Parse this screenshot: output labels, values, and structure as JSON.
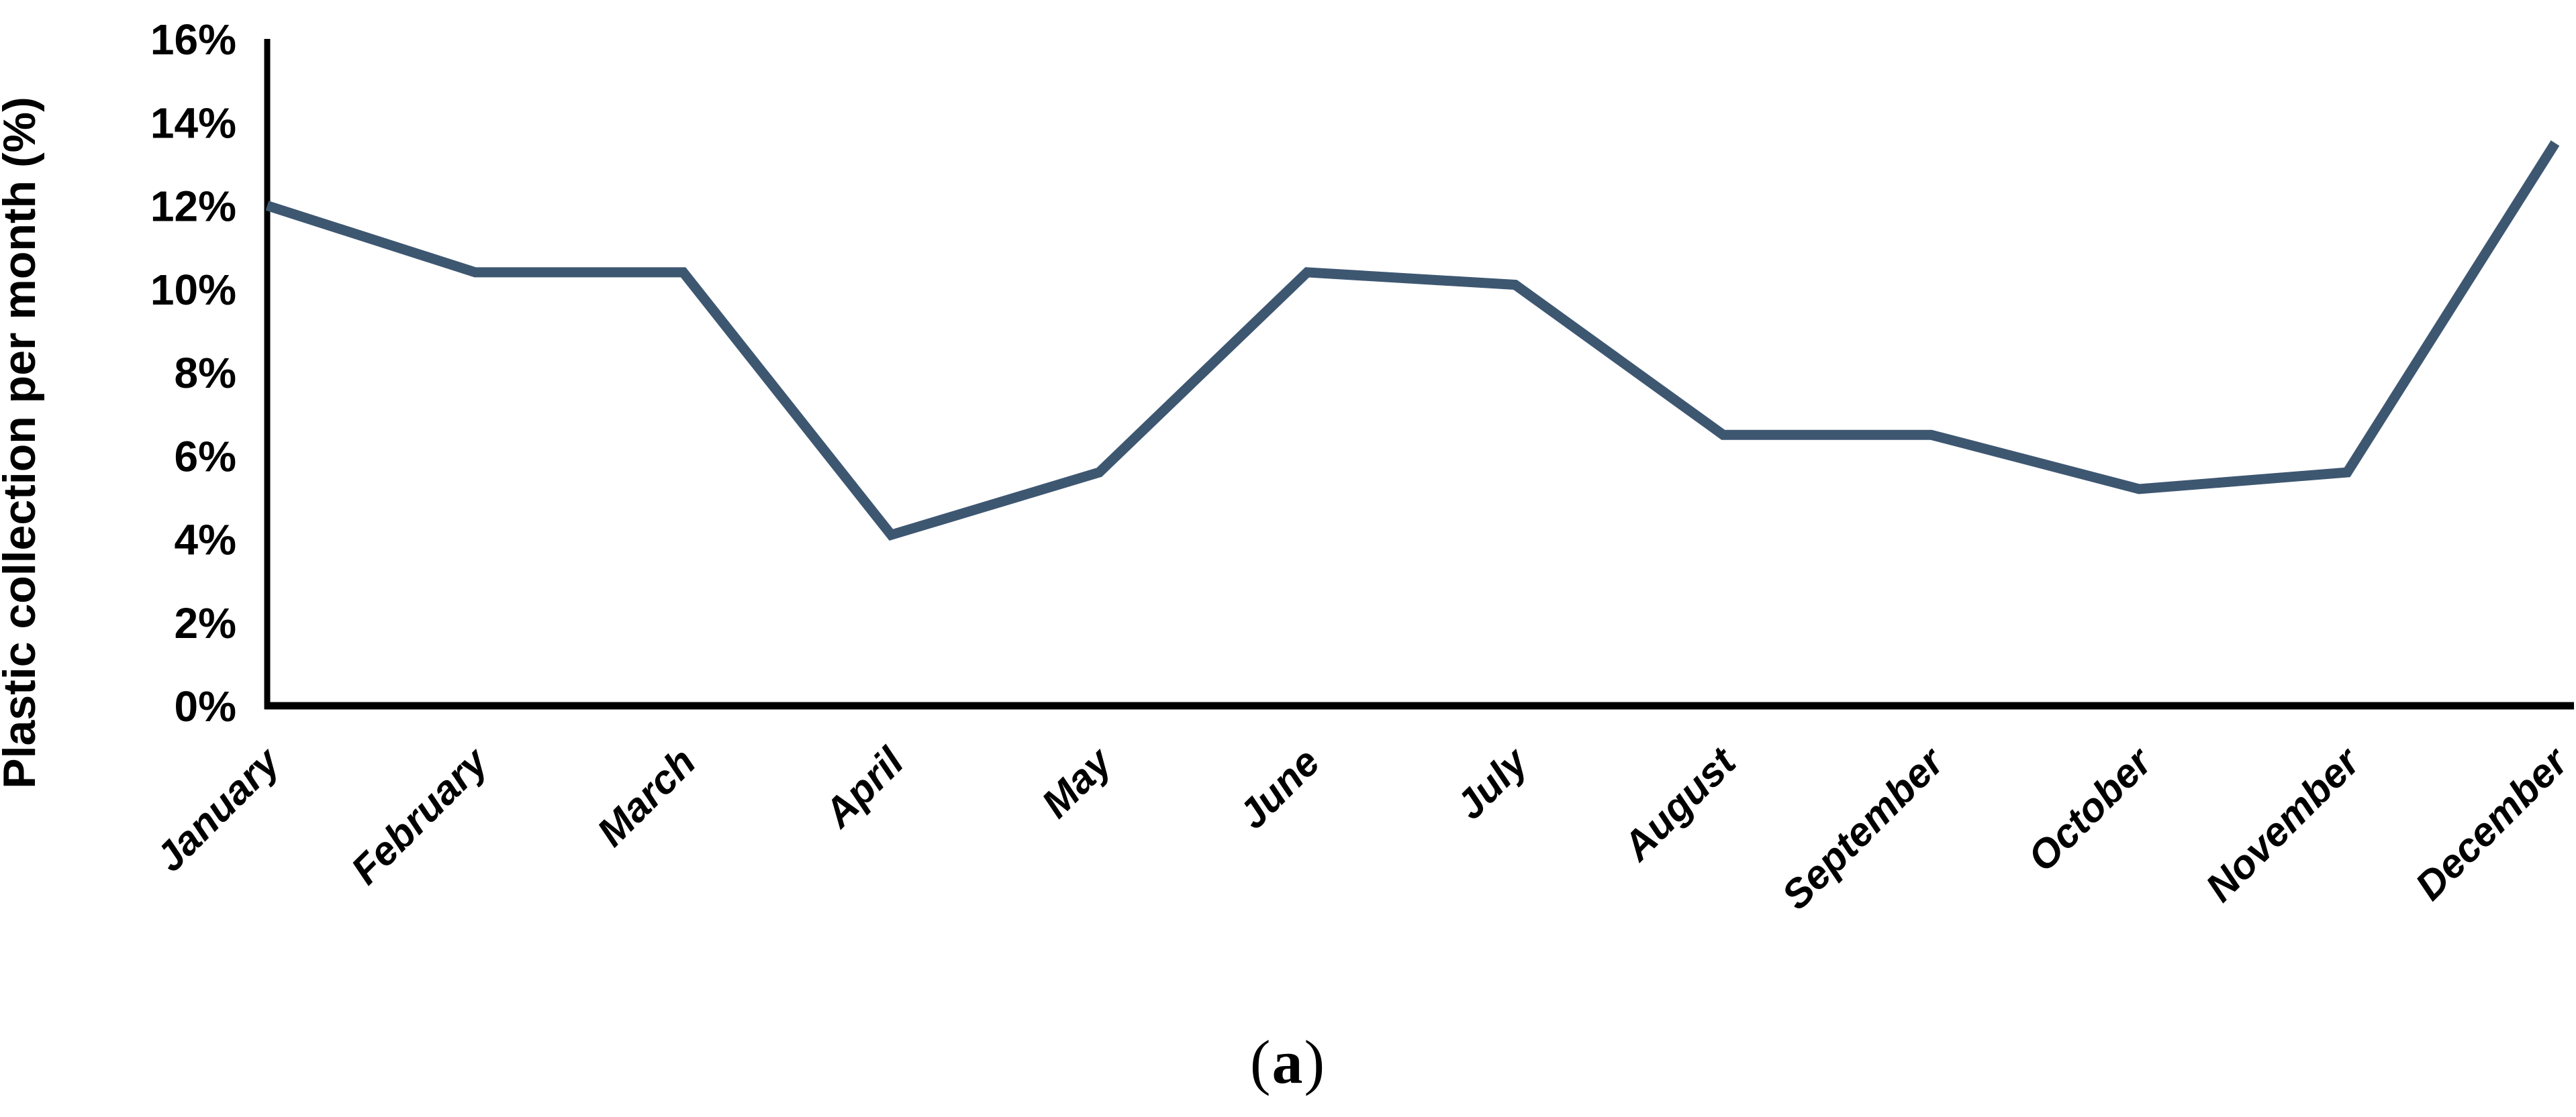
{
  "figure": {
    "caption_open": "(",
    "caption_letter": "a",
    "caption_close": ")"
  },
  "chart_data": {
    "type": "line",
    "title": "",
    "xlabel": "",
    "ylabel": "Plastic collection per month (%)",
    "categories": [
      "January",
      "February",
      "March",
      "April",
      "May",
      "June",
      "July",
      "August",
      "September",
      "October",
      "November",
      "December"
    ],
    "series": [
      {
        "name": "Plastic collection per month",
        "values": [
          12.0,
          10.4,
          10.4,
          4.1,
          5.6,
          10.4,
          10.1,
          6.5,
          6.5,
          5.2,
          5.6,
          13.5
        ]
      }
    ],
    "ylim": [
      0,
      16
    ],
    "ytick_labels": [
      "0%",
      "2%",
      "4%",
      "6%",
      "8%",
      "10%",
      "12%",
      "14%",
      "16%"
    ],
    "grid": false,
    "legend": false,
    "line_color": "#3E5771",
    "axis_color": "#000000",
    "text_color": "#000000"
  }
}
